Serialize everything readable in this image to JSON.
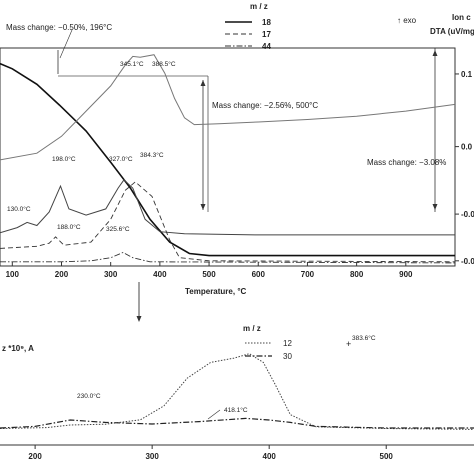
{
  "chart_data": [
    {
      "type": "line",
      "xlabel": "Temperature, °C",
      "x_ticks": [
        "100",
        "200",
        "300",
        "400",
        "500",
        "600",
        "700",
        "800",
        "900"
      ],
      "xlim": [
        75,
        1000
      ],
      "right_axis_labels": [
        "Ion c",
        "DTA (uV/mg"
      ],
      "right_ticks": [
        "0.1",
        "0.0",
        "-0.0",
        "-0.0"
      ],
      "right_tick_values": [
        0.1,
        0.03,
        -0.035,
        -0.08
      ],
      "exo_label": "↑ exo",
      "legend_title": "m / z",
      "legend_position": "top-center",
      "series": [
        {
          "name": "18",
          "style": "solid"
        },
        {
          "name": "17",
          "style": "dashed"
        },
        {
          "name": "44",
          "style": "dash-dot"
        }
      ],
      "annotations": [
        {
          "key": "mass1",
          "text": "Mass change: −0.50%, 196°C"
        },
        {
          "key": "mass2",
          "text": "Mass change: −2.56%, 500°C"
        },
        {
          "key": "mass3",
          "text": "Mass change: −3.08%"
        },
        {
          "key": "pk345",
          "text": "345.1°C"
        },
        {
          "key": "pk388",
          "text": "388.5°C"
        },
        {
          "key": "pk198",
          "text": "198.0°C"
        },
        {
          "key": "pk327",
          "text": "327.0°C"
        },
        {
          "key": "pk384",
          "text": "384.3°C"
        },
        {
          "key": "pk130",
          "text": "130.0°C"
        },
        {
          "key": "pk188",
          "text": "188.0°C"
        },
        {
          "key": "pk325",
          "text": "325.6°C"
        }
      ],
      "curves": {
        "tg": [
          [
            75,
            0.11
          ],
          [
            100,
            0.105
          ],
          [
            150,
            0.09
          ],
          [
            196,
            0.07
          ],
          [
            250,
            0.045
          ],
          [
            300,
            0.015
          ],
          [
            340,
            -0.01
          ],
          [
            380,
            -0.04
          ],
          [
            420,
            -0.062
          ],
          [
            460,
            -0.073
          ],
          [
            500,
            -0.075
          ],
          [
            700,
            -0.075
          ],
          [
            1000,
            -0.075
          ]
        ],
        "dta": [
          [
            75,
            0.012
          ],
          [
            150,
            0.02
          ],
          [
            200,
            0.04
          ],
          [
            250,
            0.07
          ],
          [
            300,
            0.1
          ],
          [
            330,
            0.125
          ],
          [
            345,
            0.135
          ],
          [
            360,
            0.134
          ],
          [
            388,
            0.137
          ],
          [
            410,
            0.115
          ],
          [
            430,
            0.085
          ],
          [
            450,
            0.062
          ],
          [
            470,
            0.054
          ],
          [
            520,
            0.055
          ],
          [
            600,
            0.057
          ],
          [
            700,
            0.06
          ],
          [
            800,
            0.064
          ],
          [
            900,
            0.07
          ],
          [
            1000,
            0.078
          ]
        ],
        "ms18": [
          [
            75,
            -0.053
          ],
          [
            110,
            -0.048
          ],
          [
            130,
            -0.043
          ],
          [
            150,
            -0.046
          ],
          [
            175,
            -0.033
          ],
          [
            198,
            -0.008
          ],
          [
            215,
            -0.03
          ],
          [
            250,
            -0.036
          ],
          [
            290,
            -0.03
          ],
          [
            315,
            -0.01
          ],
          [
            327,
            -0.002
          ],
          [
            345,
            -0.01
          ],
          [
            370,
            -0.04
          ],
          [
            400,
            -0.052
          ],
          [
            450,
            -0.054
          ],
          [
            600,
            -0.055
          ],
          [
            1000,
            -0.055
          ]
        ],
        "ms17": [
          [
            75,
            -0.068
          ],
          [
            150,
            -0.066
          ],
          [
            175,
            -0.063
          ],
          [
            188,
            -0.057
          ],
          [
            205,
            -0.065
          ],
          [
            260,
            -0.062
          ],
          [
            300,
            -0.04
          ],
          [
            330,
            -0.012
          ],
          [
            350,
            -0.004
          ],
          [
            384,
            -0.018
          ],
          [
            420,
            -0.06
          ],
          [
            440,
            -0.077
          ],
          [
            500,
            -0.08
          ],
          [
            1000,
            -0.081
          ]
        ],
        "ms44": [
          [
            75,
            -0.081
          ],
          [
            200,
            -0.081
          ],
          [
            260,
            -0.08
          ],
          [
            300,
            -0.077
          ],
          [
            325,
            -0.072
          ],
          [
            345,
            -0.077
          ],
          [
            380,
            -0.081
          ],
          [
            1000,
            -0.082
          ]
        ]
      }
    },
    {
      "type": "line",
      "ylabel": "z *10⁹, A",
      "x_ticks": [
        "200",
        "300",
        "400",
        "500"
      ],
      "xlim": [
        170,
        575
      ],
      "legend_title": "m / z",
      "series": [
        {
          "name": "12",
          "style": "dotted"
        },
        {
          "name": "30",
          "style": "dash-dot"
        }
      ],
      "annotations": [
        {
          "key": "p383",
          "text": "383.6°C"
        },
        {
          "key": "p230",
          "text": "230.0°C"
        },
        {
          "key": "p418",
          "text": "418.1°C"
        }
      ],
      "curves": {
        "ms12": [
          [
            170,
            0.04
          ],
          [
            210,
            0.05
          ],
          [
            230,
            0.08
          ],
          [
            260,
            0.09
          ],
          [
            290,
            0.14
          ],
          [
            310,
            0.3
          ],
          [
            330,
            0.62
          ],
          [
            350,
            0.8
          ],
          [
            370,
            0.85
          ],
          [
            383,
            0.9
          ],
          [
            395,
            0.8
          ],
          [
            405,
            0.55
          ],
          [
            418,
            0.2
          ],
          [
            440,
            0.06
          ],
          [
            500,
            0.04
          ],
          [
            575,
            0.03
          ]
        ],
        "ms30": [
          [
            170,
            0.0
          ],
          [
            200,
            0.02
          ],
          [
            230,
            0.1
          ],
          [
            260,
            0.07
          ],
          [
            300,
            0.05
          ],
          [
            340,
            0.08
          ],
          [
            380,
            0.12
          ],
          [
            400,
            0.1
          ],
          [
            418,
            0.07
          ],
          [
            440,
            0.02
          ],
          [
            500,
            0.0
          ],
          [
            575,
            0.0
          ]
        ]
      }
    }
  ]
}
